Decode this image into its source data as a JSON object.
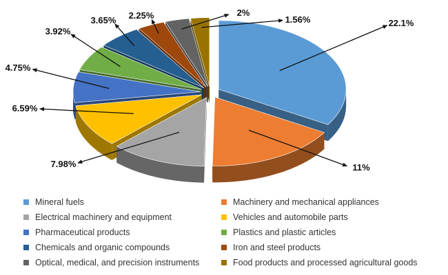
{
  "chart_data": {
    "type": "pie",
    "style": "3d-exploded",
    "legend_position": "bottom",
    "series": [
      {
        "name": "Mineral fuels",
        "value": 22.1,
        "label": "22.1%",
        "color": "#5B9BD5"
      },
      {
        "name": "Machinery and mechanical appliances",
        "value": 11,
        "label": "11%",
        "color": "#ED7D31"
      },
      {
        "name": "Electrical machinery and equipment",
        "value": 7.98,
        "label": "7.98%",
        "color": "#A5A5A5"
      },
      {
        "name": "Vehicles and automobile parts",
        "value": 6.59,
        "label": "6.59%",
        "color": "#FFC000"
      },
      {
        "name": "Pharmaceutical products",
        "value": 4.75,
        "label": "4.75%",
        "color": "#4472C4"
      },
      {
        "name": "Plastics and plastic articles",
        "value": 3.92,
        "label": "3.92%",
        "color": "#70AD47"
      },
      {
        "name": "Chemicals and organic compounds",
        "value": 3.65,
        "label": "3.65%",
        "color": "#255E91"
      },
      {
        "name": "Iron and steel products",
        "value": 2.25,
        "label": "2.25%",
        "color": "#9E480E"
      },
      {
        "name": "Optical, medical, and precision instruments",
        "value": 2,
        "label": "2%",
        "color": "#636363"
      },
      {
        "name": "Food products and processed agricultural goods",
        "value": 1.56,
        "label": "1.56%",
        "color": "#997300"
      }
    ]
  }
}
